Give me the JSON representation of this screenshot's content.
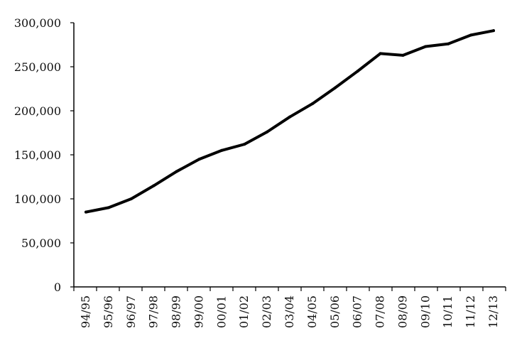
{
  "chart_data": {
    "type": "line",
    "title": "",
    "xlabel": "",
    "ylabel": "",
    "x": [
      "94/95",
      "95/96",
      "96/97",
      "97/98",
      "98/99",
      "99/00",
      "00/01",
      "01/02",
      "02/03",
      "03/04",
      "04/05",
      "05/06",
      "06/07",
      "07/08",
      "08/09",
      "09/10",
      "10/11",
      "11/12",
      "12/13"
    ],
    "series": [
      {
        "values": [
          85000,
          90000,
          100000,
          115000,
          131000,
          145000,
          155000,
          162000,
          176000,
          193000,
          208000,
          226000,
          245000,
          265000,
          263000,
          273000,
          276000,
          286000,
          291000
        ]
      }
    ],
    "ylim": [
      0,
      300000
    ],
    "yticks": [
      0,
      50000,
      100000,
      150000,
      200000,
      250000,
      300000
    ],
    "ytick_labels": [
      "0",
      "50,000",
      "100,000",
      "150,000",
      "200,000",
      "250,000",
      "300,000"
    ],
    "grid": false,
    "legend": "none",
    "line_color": "#000000"
  }
}
